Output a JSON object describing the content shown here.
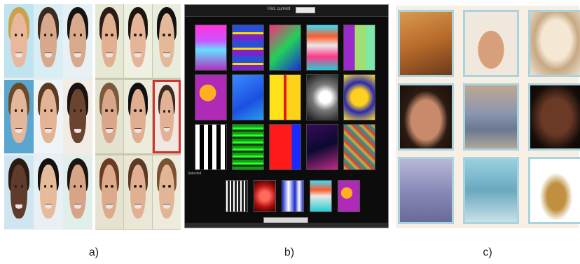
{
  "panel_a": {
    "left_group": [
      {
        "name": "face-blonde-woman",
        "bg": "#bfe3ef",
        "skin": "#e9b89c",
        "hair": "#c9a24e"
      },
      {
        "name": "face-man-gray",
        "bg": "#d9eef4",
        "skin": "#d8a88c",
        "hair": "#3b2a1f"
      },
      {
        "name": "face-asian-man",
        "bg": "#e7f1f5",
        "skin": "#d8a98a",
        "hair": "#141414"
      },
      {
        "name": "face-man-blue-bg",
        "bg": "#5aa6cf",
        "skin": "#e4b79a",
        "hair": "#6b4a2a"
      },
      {
        "name": "face-woman-smiling",
        "bg": "#eef4f7",
        "skin": "#e3b393",
        "hair": "#5a3a22"
      },
      {
        "name": "face-black-man",
        "bg": "#f1ece4",
        "skin": "#6b4430",
        "hair": "#1a1210"
      },
      {
        "name": "face-bald-man",
        "bg": "#cfe6f1",
        "skin": "#5e3b2a",
        "hair": "#2a1a12"
      },
      {
        "name": "face-asian-woman",
        "bg": "#e9f0f3",
        "skin": "#e6bb9a",
        "hair": "#121212"
      },
      {
        "name": "face-woman-dark-hair",
        "bg": "#e0efe9",
        "skin": "#d7a488",
        "hair": "#1c1410"
      }
    ],
    "right_group": [
      {
        "name": "face-woman-long-hair",
        "bg": "#e6e8d6",
        "skin": "#e2b091",
        "hair": "#2a1c15",
        "selected": false
      },
      {
        "name": "face-woman-bangs",
        "bg": "#eef0e2",
        "skin": "#e6b597",
        "hair": "#1e150f",
        "selected": false
      },
      {
        "name": "face-asian-girl",
        "bg": "#e8ecdc",
        "skin": "#e4b999",
        "hair": "#121010",
        "selected": false
      },
      {
        "name": "face-older-woman",
        "bg": "#e2e2cf",
        "skin": "#d9a689",
        "hair": "#7a5a3a",
        "selected": false
      },
      {
        "name": "face-woman-black-hair",
        "bg": "#ececdc",
        "skin": "#dfae90",
        "hair": "#101010",
        "selected": false
      },
      {
        "name": "face-woman-selected",
        "bg": "#f2e6e0",
        "skin": "#e2b196",
        "hair": "#3a2a1f",
        "selected": true
      },
      {
        "name": "face-woman-auburn",
        "bg": "#e6e2d2",
        "skin": "#ddaa8b",
        "hair": "#6a3a22",
        "selected": false
      },
      {
        "name": "face-woman-brown",
        "bg": "#ebe7d6",
        "skin": "#e1b092",
        "hair": "#5a3a24",
        "selected": false
      },
      {
        "name": "face-woman-light",
        "bg": "#ecebdc",
        "skin": "#e3b597",
        "hair": "#7a5232",
        "selected": false
      }
    ],
    "caption": "a)"
  },
  "panel_b": {
    "header_label": "Hist. current",
    "header_value": "",
    "tiles": [
      {
        "name": "tile-purple-wave",
        "css": "linear-gradient(180deg,#ff33dd 0%,#cc55ff 35%,#66e0ff 55%,#b030c0 100%)"
      },
      {
        "name": "tile-blue-stripes",
        "css": "repeating-linear-gradient(180deg,#2b4fd6 0 10px,#ffdd00 10px 13px,#7a25c9 13px 22px)"
      },
      {
        "name": "tile-green-red-sweep",
        "css": "linear-gradient(135deg,#ff2a7a 0%,#22d05a 50%,#1b2dd6 100%)"
      },
      {
        "name": "tile-cyan-pattern",
        "css": "linear-gradient(180deg,#33e0ff 0%,#ff5a2a 25%,#e8e8e8 45%,#ff3a8a 70%,#22ccd0 100%)"
      },
      {
        "name": "tile-green-bars",
        "css": "linear-gradient(90deg,#9a2ac9 0 35%,#a0e070 35% 70%,#7fe8a8 70% 100%)"
      },
      {
        "name": "tile-purple-s",
        "css": "radial-gradient(circle at 40% 40%,#ffb020 0 25%,#b02ab8 26% 100%)"
      },
      {
        "name": "tile-blue-arrow",
        "css": "linear-gradient(150deg,#3a8aff 0%,#1a50e0 60%,#2b9af0 100%)"
      },
      {
        "name": "tile-yellow-red",
        "css": "linear-gradient(90deg,#ffe21a 0 45%,#e01a1a 45% 55%,#ffd21a 55% 100%)"
      },
      {
        "name": "tile-white-glow",
        "css": "radial-gradient(circle at 60% 50%,#ffffff 0 20%,#7a7a7a 45%,#101010 100%)"
      },
      {
        "name": "tile-yellow-x",
        "css": "radial-gradient(circle,#ffd020 0 30%,#2a2ab0 55%,#ffe02a 100%)"
      },
      {
        "name": "tile-bw-letters",
        "css": "repeating-linear-gradient(90deg,#ffffff 0 6px,#000000 6px 12px)"
      },
      {
        "name": "tile-green-lines",
        "css": "repeating-linear-gradient(180deg,#10a010 0 4px,#2aff2a 4px 7px,#0a3a0a 7px 10px)"
      },
      {
        "name": "tile-red-blue-bar",
        "css": "linear-gradient(90deg,#ff1a1a 0 72%,#1a2aff 72% 100%)"
      },
      {
        "name": "tile-dark-v",
        "css": "linear-gradient(160deg,#3a0a5a 0%,#0a0a30 50%,#c02a8a 100%)"
      },
      {
        "name": "tile-gold-pattern",
        "css": "repeating-linear-gradient(45deg,#c0a040 0 4px,#d04a3a 4px 8px,#3a8a8a 8px 12px)"
      }
    ],
    "selected_label": "Selected",
    "selected": [
      {
        "name": "selected-white-bars",
        "css": "repeating-linear-gradient(90deg,#ffffff 0 2px,#222 2px 5px)"
      },
      {
        "name": "selected-red-glow",
        "css": "radial-gradient(circle,#ff6a5a 0 25%,#b01010 60%,#300000 100%)"
      },
      {
        "name": "selected-blue-figures",
        "css": "linear-gradient(90deg,#1a2ad0 0%,#ffffff 30%,#1a2ad0 60%,#ffffff 80%,#1a2ad0 100%)"
      },
      {
        "name": "selected-cyan-pattern",
        "css": "linear-gradient(180deg,#33e0ff 0%,#ff5a2a 30%,#e8e8e8 50%,#22ccd0 100%)"
      },
      {
        "name": "selected-purple-s",
        "css": "radial-gradient(circle at 40% 40%,#ffb020 0 25%,#b02ab8 26% 100%)"
      }
    ],
    "button_label": "",
    "caption": "b)"
  },
  "panel_c": {
    "tiles": [
      {
        "name": "photo-basketball",
        "css": "linear-gradient(160deg,#d89a50 0%,#b86a2a 50%,#6a3a1a 100%)"
      },
      {
        "name": "photo-asian-man",
        "css": "radial-gradient(ellipse at 50% 60%,#d8a07a 0 35%,#f0e8dc 36% 100%)"
      },
      {
        "name": "photo-coffee-cup",
        "css": "radial-gradient(ellipse at 50% 45%,#f4e8d4 0 40%,#c8a882 60%,#ece4d6 100%)"
      },
      {
        "name": "photo-girl-face",
        "css": "radial-gradient(ellipse at 50% 55%,#c88a6a 0 40%,#2a1a12 60%,#1a1008 100%)"
      },
      {
        "name": "photo-car",
        "css": "linear-gradient(180deg,#c0a890 0%,#8a96b0 45%,#6a7890 70%,#b0a898 100%)"
      },
      {
        "name": "photo-woman-face",
        "css": "radial-gradient(ellipse at 50% 50%,#6a3a26 0 40%,#140c08 75%,#0a0604 100%)"
      },
      {
        "name": "photo-mountains",
        "css": "linear-gradient(180deg,#b8b8d8 0%,#8a8ab8 50%,#6a6a98 100%)"
      },
      {
        "name": "photo-dolphin",
        "css": "linear-gradient(180deg,#9ad0e0 0%,#6aa8c0 50%,#c8e0e8 100%)"
      },
      {
        "name": "photo-keys",
        "css": "radial-gradient(ellipse at 50% 60%,#c09040 0 25%,#ffffff 45%)"
      }
    ],
    "caption": "c)"
  }
}
